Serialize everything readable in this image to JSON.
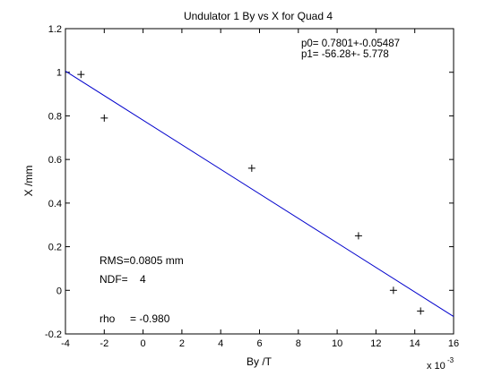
{
  "chart_data": {
    "type": "scatter",
    "title": "Undulator 1 By vs X for Quad 4",
    "xlabel": "By /T",
    "ylabel": "X /mm",
    "x_multiplier_label": "x 10",
    "x_multiplier_exp": "-3",
    "xlim": [
      -4,
      16
    ],
    "ylim": [
      -0.2,
      1.2
    ],
    "xticks": [
      "-4",
      "-2",
      "0",
      "2",
      "4",
      "6",
      "8",
      "10",
      "12",
      "14",
      "16"
    ],
    "yticks": [
      "-0.2",
      "0",
      "0.2",
      "0.4",
      "0.6",
      "0.8",
      "1",
      "1.2"
    ],
    "grid": false,
    "series": [
      {
        "marker": "+",
        "color": "#000000",
        "x": [
          -3.2,
          -2.0,
          5.6,
          11.1,
          12.9,
          14.3
        ],
        "y": [
          0.99,
          0.79,
          0.56,
          0.25,
          0.0,
          -0.095
        ]
      }
    ],
    "fit_line": {
      "color": "#0000cc",
      "intercept": 0.7801,
      "slope": -56.28,
      "x_scale": 0.001,
      "x_range": [
        -4,
        16
      ]
    },
    "annotations": {
      "p0": "p0= 0.7801+-0.05487",
      "p1": "p1= -56.28+- 5.778",
      "rms": "RMS=0.0805 mm",
      "ndf": "NDF=    4",
      "rho": "rho     = -0.980"
    }
  }
}
